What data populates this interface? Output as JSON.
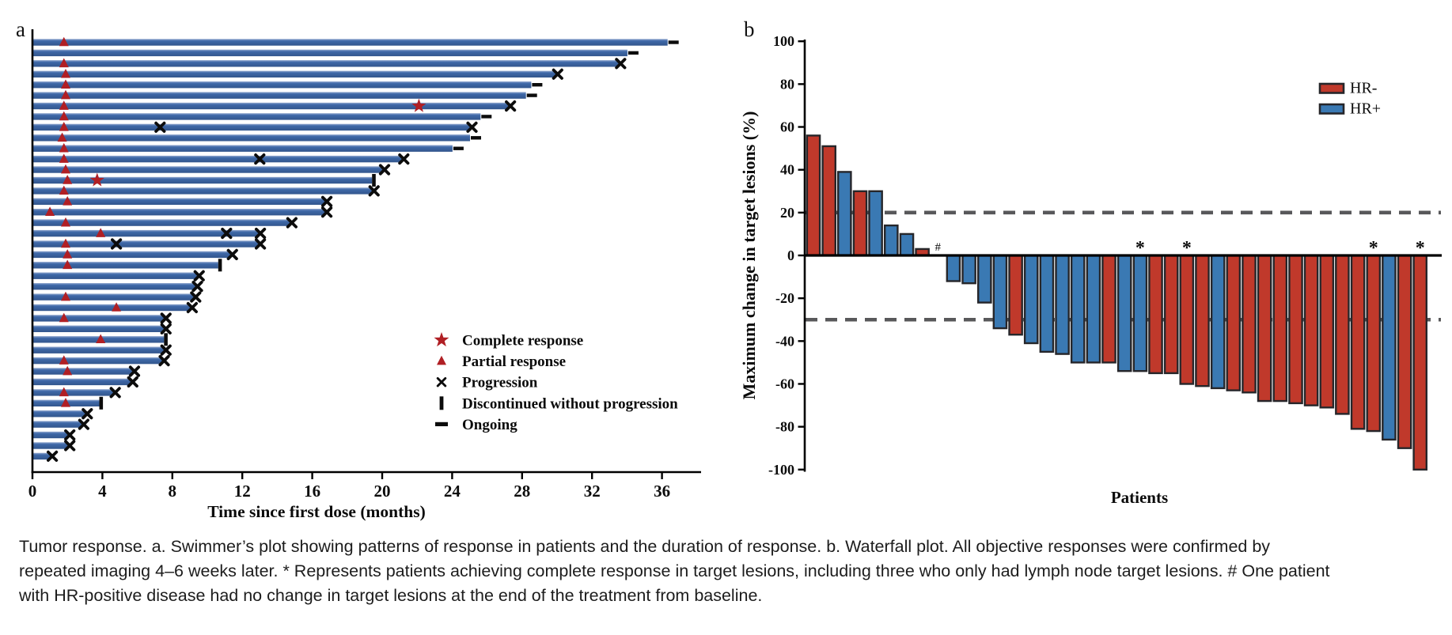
{
  "caption": {
    "text": "Tumor response. a. Swimmer’s plot showing patterns of response in patients and the duration of response. b. Waterfall plot. All objective responses were confirmed by repeated imaging 4–6 weeks later. * Represents patients achieving complete response in target lesions, including three who only had lymph node target lesions. # One patient with HR-positive disease had no change in target lesions at the end of the treatment from baseline."
  },
  "colors": {
    "swimmer_bar_top": "#93a9cf",
    "swimmer_bar_mid": "#3e68a8",
    "swimmer_bar_bottom": "#33568d",
    "response_red": "#b01f24",
    "marker_black": "#0c0c0c",
    "hr_negative": "#c0392b",
    "hr_positive": "#3a79b3",
    "ref_line_gray": "#58585a",
    "axis_black": "#000000",
    "bar_stroke": "#26262a"
  },
  "chart_data": [
    {
      "type": "bar",
      "id": "swimmer",
      "panel_label": "a",
      "orientation": "horizontal",
      "xlabel": "Time since first dose (months)",
      "xticks": [
        0,
        4,
        8,
        12,
        16,
        20,
        24,
        28,
        32,
        36
      ],
      "xlim": [
        0,
        38.2
      ],
      "legend_position": "right-middle",
      "legend": [
        {
          "symbol": "star",
          "color": "#b01f24",
          "label": "Complete response"
        },
        {
          "symbol": "triangle",
          "color": "#b01f24",
          "label": "Partial response"
        },
        {
          "symbol": "x",
          "color": "#0c0c0c",
          "label": "Progression"
        },
        {
          "symbol": "vbar",
          "color": "#0c0c0c",
          "label": "Discontinued without progression"
        },
        {
          "symbol": "dash",
          "color": "#0c0c0c",
          "label": "Ongoing"
        }
      ],
      "bars_note": "duration in months; end_marker one of ongoing|progression|discontinued; partial_response_at / complete_response_at / progression_at are marker positions in months",
      "bars": [
        {
          "duration": 36.3,
          "end_marker": "ongoing",
          "partial_response_at": 1.8
        },
        {
          "duration": 34.0,
          "end_marker": "ongoing"
        },
        {
          "duration": 33.5,
          "end_marker": "progression",
          "partial_response_at": 1.8
        },
        {
          "duration": 29.9,
          "end_marker": "progression",
          "partial_response_at": 1.9
        },
        {
          "duration": 28.5,
          "end_marker": "ongoing",
          "partial_response_at": 1.9
        },
        {
          "duration": 28.2,
          "end_marker": "ongoing",
          "partial_response_at": 1.9
        },
        {
          "duration": 27.2,
          "end_marker": "progression",
          "partial_response_at": 1.8,
          "complete_response_at": 22.1
        },
        {
          "duration": 25.6,
          "end_marker": "ongoing",
          "partial_response_at": 1.8
        },
        {
          "duration": 25.0,
          "end_marker": "progression",
          "partial_response_at": 1.8,
          "progression_at": [
            7.3
          ]
        },
        {
          "duration": 25.0,
          "end_marker": "ongoing",
          "partial_response_at": 1.7
        },
        {
          "duration": 24.0,
          "end_marker": "ongoing",
          "partial_response_at": 1.8
        },
        {
          "duration": 21.1,
          "end_marker": "progression",
          "partial_response_at": 1.8,
          "progression_at": [
            13.0
          ]
        },
        {
          "duration": 20.0,
          "end_marker": "progression",
          "partial_response_at": 1.9
        },
        {
          "duration": 19.4,
          "end_marker": "discontinued",
          "partial_response_at": 2.0,
          "complete_response_at": 3.7
        },
        {
          "duration": 19.4,
          "end_marker": "progression",
          "partial_response_at": 1.8
        },
        {
          "duration": 16.7,
          "end_marker": "progression",
          "partial_response_at": 2.0
        },
        {
          "duration": 16.7,
          "end_marker": "progression",
          "partial_response_at": 1.0
        },
        {
          "duration": 14.7,
          "end_marker": "progression",
          "partial_response_at": 1.9
        },
        {
          "duration": 12.9,
          "end_marker": "progression",
          "partial_response_at": 3.9,
          "progression_at": [
            11.1
          ]
        },
        {
          "duration": 12.9,
          "end_marker": "progression",
          "partial_response_at": 1.9,
          "progression_at": [
            4.8
          ]
        },
        {
          "duration": 11.3,
          "end_marker": "progression",
          "partial_response_at": 2.0
        },
        {
          "duration": 10.6,
          "end_marker": "discontinued",
          "partial_response_at": 2.0
        },
        {
          "duration": 9.4,
          "end_marker": "progression"
        },
        {
          "duration": 9.3,
          "end_marker": "progression"
        },
        {
          "duration": 9.2,
          "end_marker": "progression",
          "partial_response_at": 1.9
        },
        {
          "duration": 9.0,
          "end_marker": "progression",
          "partial_response_at": 4.8
        },
        {
          "duration": 7.5,
          "end_marker": "progression",
          "partial_response_at": 1.8
        },
        {
          "duration": 7.5,
          "end_marker": "progression"
        },
        {
          "duration": 7.5,
          "end_marker": "discontinued",
          "partial_response_at": 3.9
        },
        {
          "duration": 7.5,
          "end_marker": "progression"
        },
        {
          "duration": 7.4,
          "end_marker": "progression",
          "partial_response_at": 1.8
        },
        {
          "duration": 5.7,
          "end_marker": "progression",
          "partial_response_at": 2.0
        },
        {
          "duration": 5.6,
          "end_marker": "progression"
        },
        {
          "duration": 4.6,
          "end_marker": "progression",
          "partial_response_at": 1.8
        },
        {
          "duration": 3.8,
          "end_marker": "discontinued",
          "partial_response_at": 1.9
        },
        {
          "duration": 3.0,
          "end_marker": "progression"
        },
        {
          "duration": 2.8,
          "end_marker": "progression"
        },
        {
          "duration": 2.0,
          "end_marker": "progression"
        },
        {
          "duration": 2.0,
          "end_marker": "progression"
        },
        {
          "duration": 1.0,
          "end_marker": "progression"
        }
      ]
    },
    {
      "type": "bar",
      "id": "waterfall",
      "panel_label": "b",
      "ylabel": "Maximum change in target lesions (%)",
      "xlabel": "Patients",
      "ylim": [
        -100,
        100
      ],
      "yticks": [
        100,
        80,
        60,
        40,
        20,
        0,
        -20,
        -40,
        -60,
        -80,
        -100
      ],
      "ref_lines": [
        20,
        -30
      ],
      "legend_position": "top-right",
      "legend": [
        {
          "label": "HR-",
          "color": "#c0392b"
        },
        {
          "label": "HR+",
          "color": "#3a79b3"
        }
      ],
      "values": [
        56,
        51,
        39,
        30,
        30,
        14,
        10,
        3,
        0,
        -12,
        -13,
        -22,
        -34,
        -37,
        -41,
        -45,
        -46,
        -50,
        -50,
        -50,
        -54,
        -54,
        -55,
        -55,
        -60,
        -61,
        -62,
        -63,
        -64,
        -68,
        -68,
        -69,
        -70,
        -71,
        -74,
        -81,
        -82,
        -86,
        -90,
        -100
      ],
      "groups": [
        "HR-",
        "HR-",
        "HR+",
        "HR-",
        "HR+",
        "HR+",
        "HR+",
        "HR-",
        "HR+",
        "HR+",
        "HR+",
        "HR+",
        "HR+",
        "HR-",
        "HR+",
        "HR+",
        "HR+",
        "HR+",
        "HR+",
        "HR-",
        "HR+",
        "HR+",
        "HR-",
        "HR-",
        "HR-",
        "HR-",
        "HR+",
        "HR-",
        "HR-",
        "HR-",
        "HR-",
        "HR-",
        "HR-",
        "HR-",
        "HR-",
        "HR-",
        "HR-",
        "HR+",
        "HR-",
        "HR-"
      ],
      "annotations": [
        {
          "patient": 9,
          "symbol": "#"
        },
        {
          "patient": 22,
          "symbol": "*"
        },
        {
          "patient": 25,
          "symbol": "*"
        },
        {
          "patient": 37,
          "symbol": "*"
        },
        {
          "patient": 40,
          "symbol": "*"
        }
      ]
    }
  ]
}
